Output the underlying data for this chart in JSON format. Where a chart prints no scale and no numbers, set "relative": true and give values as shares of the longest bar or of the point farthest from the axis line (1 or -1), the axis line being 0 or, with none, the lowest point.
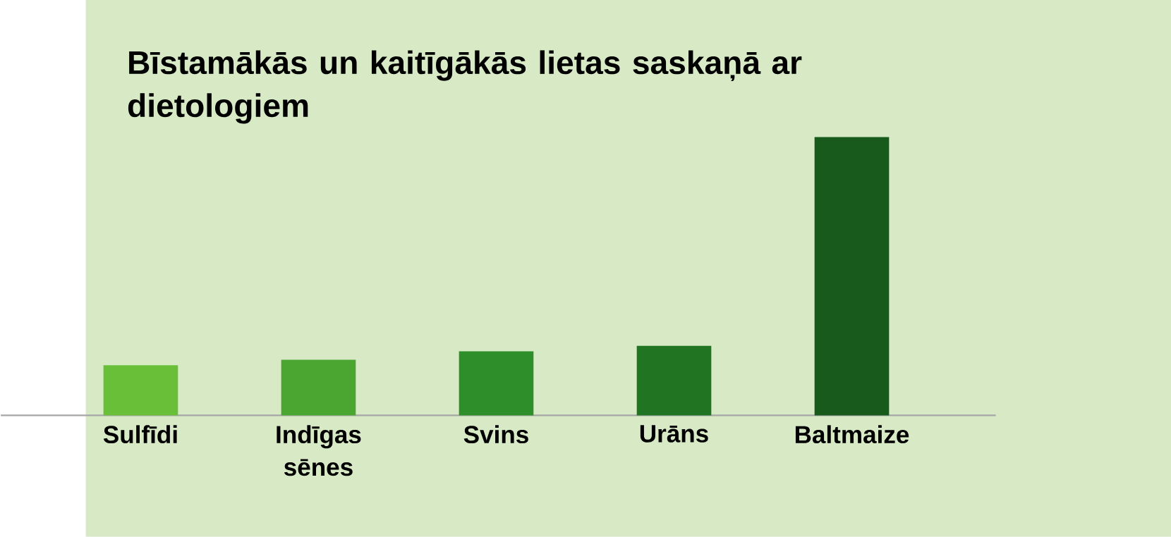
{
  "chart_data": {
    "type": "bar",
    "title": "Bīstamākās un kaitīgākās lietas saskaņā ar dietologiem",
    "categories": [
      "Sulfīdi",
      "Indīgas sēnes",
      "Svins",
      "Urāns",
      "Baltmaize"
    ],
    "values": [
      0.18,
      0.2,
      0.23,
      0.25,
      1
    ],
    "colors": [
      "#6abf38",
      "#4aa631",
      "#2e8f2a",
      "#217522",
      "#175a1b"
    ],
    "relative": true
  }
}
